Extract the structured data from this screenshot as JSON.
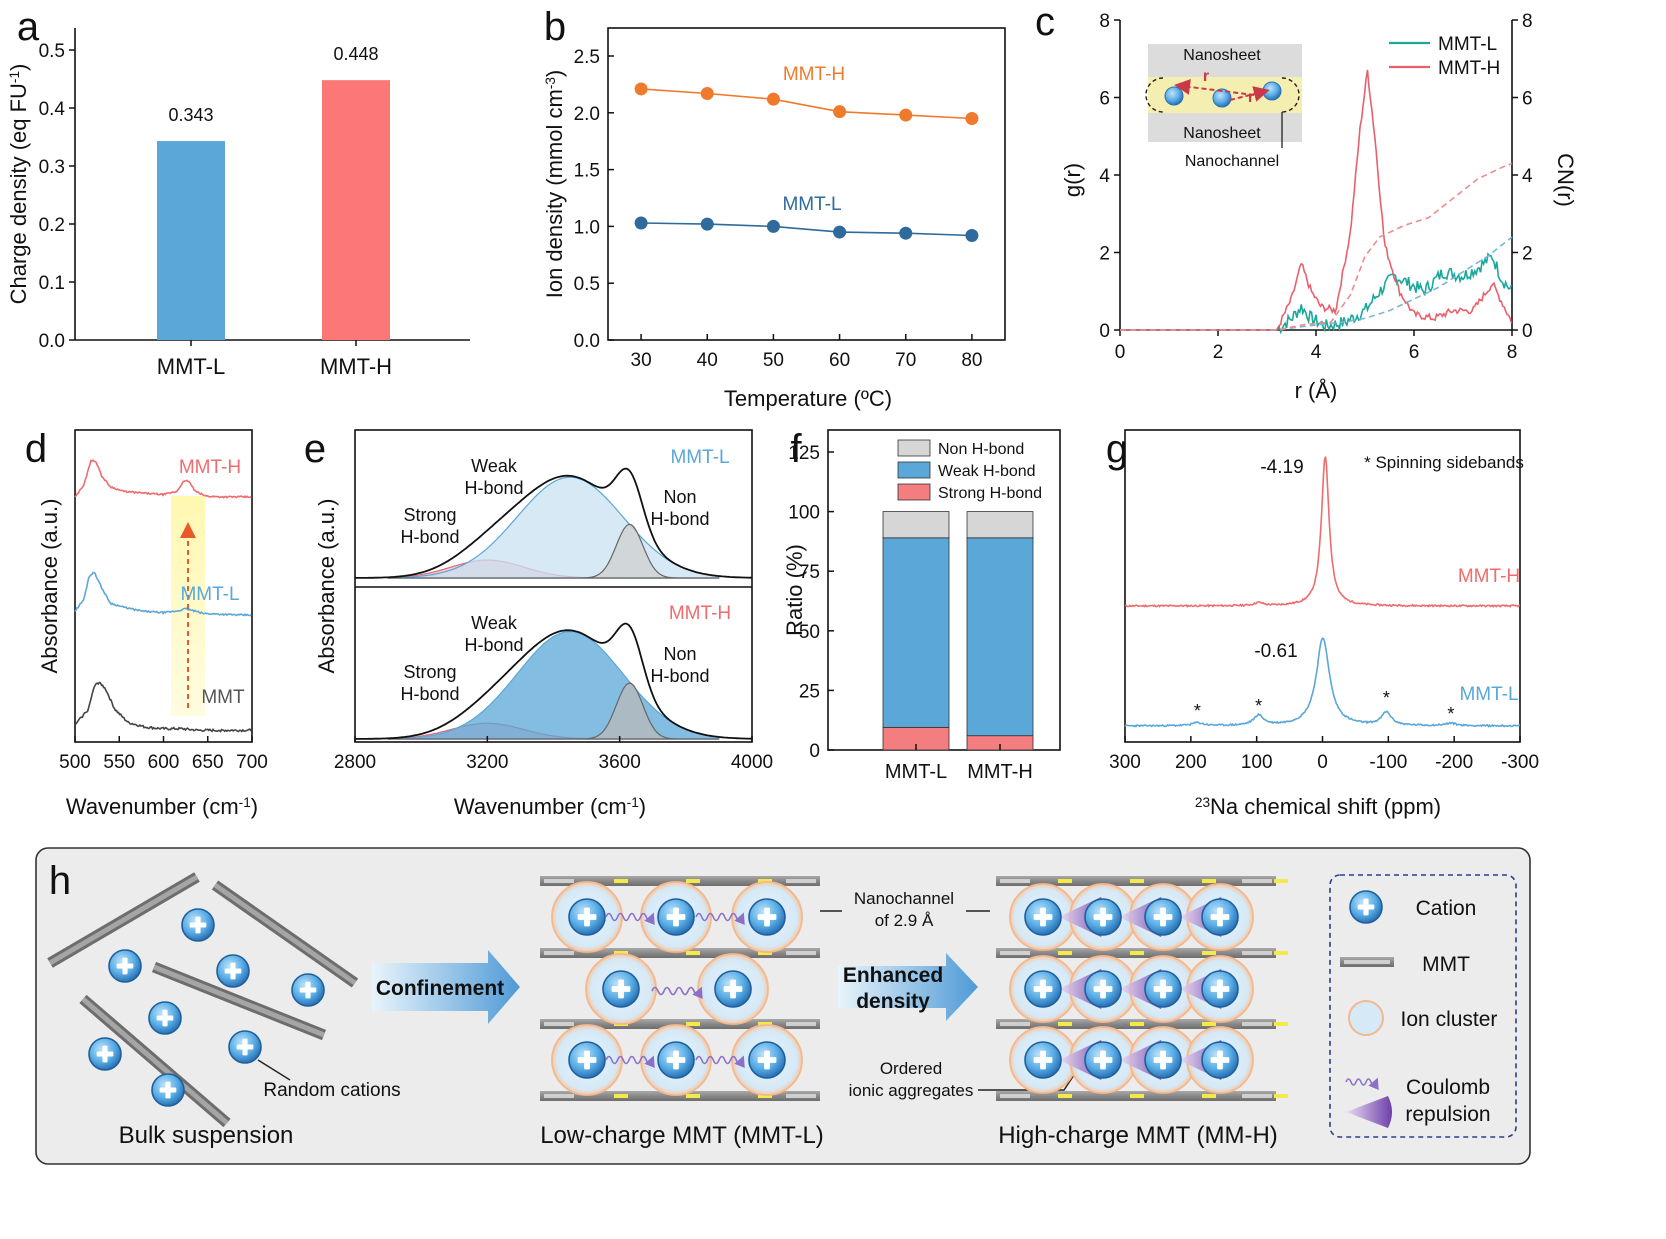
{
  "panel_labels": [
    "a",
    "b",
    "c",
    "d",
    "e",
    "f",
    "g",
    "h"
  ],
  "colors": {
    "blue": "#5aa7d8",
    "red": "#f06b6d",
    "orange": "#ef7a2b",
    "navy": "#2e6a9c",
    "teal": "#1aa89a",
    "gray": "#444444"
  },
  "chart_data": [
    {
      "id": "a",
      "type": "bar",
      "categories": [
        "MMT-L",
        "MMT-H"
      ],
      "values": [
        0.343,
        0.448
      ],
      "value_labels": [
        "0.343",
        "0.448"
      ],
      "ylabel": "Charge density (eq FU",
      "ylabel_sup": "-1",
      "ylabel_end": ")",
      "ylim": [
        0,
        0.5
      ],
      "yticks": [
        "0.0",
        "0.1",
        "0.2",
        "0.3",
        "0.4",
        "0.5"
      ],
      "colors": [
        "#5aa7d8",
        "#fb7877"
      ]
    },
    {
      "id": "b",
      "type": "line",
      "x": [
        30,
        40,
        50,
        60,
        70,
        80
      ],
      "xticks": [
        "30",
        "40",
        "50",
        "60",
        "70",
        "80"
      ],
      "series": [
        {
          "name": "MMT-H",
          "values": [
            2.21,
            2.17,
            2.12,
            2.01,
            1.98,
            1.95
          ],
          "color": "#ef7a2b"
        },
        {
          "name": "MMT-L",
          "values": [
            1.03,
            1.02,
            1.0,
            0.95,
            0.94,
            0.92
          ],
          "color": "#2e6a9c"
        }
      ],
      "xlabel": "Temperature (ºC)",
      "ylabel": "Ion density (mmol cm",
      "ylabel_sup": "-3",
      "ylabel_end": ")",
      "xlim": [
        25,
        85
      ],
      "ylim": [
        0,
        2.6
      ],
      "yticks": [
        "0.0",
        "0.5",
        "1.0",
        "1.5",
        "2.0",
        "2.5"
      ]
    },
    {
      "id": "c",
      "type": "line",
      "xlabel": "r (Å)",
      "ylabel_left": "g(r)",
      "ylabel_right": "CN(r)",
      "xlim": [
        0,
        8
      ],
      "ylim": [
        0,
        8
      ],
      "xticks": [
        "0",
        "2",
        "4",
        "6",
        "8"
      ],
      "yticks": [
        "0",
        "2",
        "4",
        "6",
        "8"
      ],
      "series": [
        {
          "name": "MMT-L",
          "kind": "g(r)",
          "color": "#1aa89a",
          "x": [
            0,
            3.2,
            3.5,
            3.7,
            3.9,
            4.2,
            4.6,
            5.0,
            5.3,
            5.6,
            5.9,
            6.2,
            6.6,
            7.0,
            7.3,
            7.6,
            7.8,
            8.0
          ],
          "y": [
            0,
            0,
            0.3,
            0.6,
            0.3,
            0.1,
            0.2,
            0.5,
            1.0,
            1.4,
            1.2,
            1.0,
            1.5,
            1.4,
            1.6,
            1.9,
            1.3,
            1.0
          ]
        },
        {
          "name": "MMT-H",
          "kind": "g(r)",
          "color": "#e9606b",
          "x": [
            0,
            3.2,
            3.5,
            3.7,
            3.9,
            4.1,
            4.4,
            4.7,
            4.9,
            5.05,
            5.2,
            5.4,
            5.7,
            6.0,
            6.4,
            6.8,
            7.2,
            7.6,
            7.8,
            8.0
          ],
          "y": [
            0,
            0,
            0.8,
            1.7,
            1.0,
            0.6,
            0.5,
            2.5,
            5.2,
            6.7,
            5.0,
            2.2,
            1.0,
            0.4,
            0.3,
            0.5,
            0.5,
            1.2,
            0.7,
            0.2
          ]
        },
        {
          "name": "MMT-L CN",
          "kind": "CN(r)",
          "color": "#7ab6d8",
          "dashed": true,
          "x": [
            0,
            3.2,
            3.8,
            4.5,
            5.0,
            5.5,
            6.0,
            6.5,
            7.0,
            7.5,
            8.0
          ],
          "y": [
            0,
            0,
            0.1,
            0.2,
            0.3,
            0.5,
            0.8,
            1.1,
            1.5,
            1.9,
            2.4
          ]
        },
        {
          "name": "MMT-H CN",
          "kind": "CN(r)",
          "color": "#f08a8c",
          "dashed": true,
          "x": [
            0,
            3.2,
            3.8,
            4.3,
            4.7,
            5.0,
            5.3,
            5.8,
            6.3,
            6.8,
            7.3,
            7.8,
            8.0
          ],
          "y": [
            0,
            0,
            0.15,
            0.2,
            0.9,
            1.9,
            2.4,
            2.7,
            2.9,
            3.4,
            3.9,
            4.2,
            4.3
          ]
        }
      ],
      "legend": [
        "MMT-L",
        "MMT-H"
      ],
      "inset_labels": {
        "top": "Nanosheet",
        "bottom": "Nanosheet",
        "channel": "Nanochannel",
        "r": "r"
      }
    },
    {
      "id": "d",
      "type": "line",
      "xlabel": "Wavenumber (cm",
      "xlabel_sup": "-1",
      "xlabel_end": ")",
      "ylabel": "Absorbance (a.u.)",
      "xlim": [
        500,
        700
      ],
      "xticks": [
        "500",
        "550",
        "600",
        "650",
        "700"
      ],
      "series": [
        {
          "name": "MMT-H",
          "color": "#f06b6d",
          "x": [
            500,
            510,
            518,
            524,
            530,
            540,
            555,
            575,
            600,
            615,
            622,
            628,
            636,
            648,
            665,
            685,
            700
          ],
          "y": [
            0.45,
            0.6,
            0.92,
            0.9,
            0.72,
            0.58,
            0.52,
            0.5,
            0.48,
            0.52,
            0.64,
            0.66,
            0.52,
            0.46,
            0.45,
            0.45,
            0.45
          ]
        },
        {
          "name": "MMT-L",
          "color": "#5aa7d8",
          "x": [
            500,
            510,
            516,
            522,
            530,
            540,
            555,
            575,
            600,
            615,
            625,
            632,
            645,
            665,
            685,
            700
          ],
          "y": [
            0.05,
            0.2,
            0.5,
            0.55,
            0.35,
            0.15,
            0.1,
            0.05,
            0.03,
            0.05,
            0.08,
            0.06,
            0.02,
            0.01,
            0.0,
            0.0
          ]
        },
        {
          "name": "MMT",
          "color": "#444444",
          "x": [
            500,
            515,
            522,
            528,
            535,
            545,
            560,
            580,
            600,
            620,
            640,
            660,
            680,
            700
          ],
          "y": [
            -0.55,
            -0.35,
            -0.05,
            0.0,
            -0.1,
            -0.35,
            -0.52,
            -0.58,
            -0.6,
            -0.6,
            -0.62,
            -0.62,
            -0.62,
            -0.62
          ]
        }
      ]
    },
    {
      "id": "e",
      "type": "area",
      "xlabel": "Wavenumber (cm",
      "xlabel_sup": "-1",
      "xlabel_end": ")",
      "ylabel": "Absorbance (a.u.)",
      "xlim": [
        2800,
        4000
      ],
      "xticks": [
        "2800",
        "3200",
        "3600",
        "4000"
      ],
      "subplots": [
        {
          "sample": "MMT-L",
          "label_color": "#5aa7d8",
          "labels": [
            "Weak",
            "H-bond",
            "Strong",
            "H-bond",
            "Non",
            "H-bond"
          ]
        },
        {
          "sample": "MMT-H",
          "label_color": "#f06b6d",
          "labels": [
            "Weak",
            "H-bond",
            "Strong",
            "H-bond",
            "Non",
            "H-bond"
          ]
        }
      ],
      "components": [
        {
          "name": "Strong H-bond",
          "center": 3200,
          "width": 110,
          "height_L": 0.16,
          "height_H": 0.14,
          "color": "#f0a0a8"
        },
        {
          "name": "Weak H-bond",
          "center": 3450,
          "width": 160,
          "height_L": 0.9,
          "height_H": 0.96,
          "color": "#5aa7d8"
        },
        {
          "name": "Non H-bond",
          "center": 3630,
          "width": 40,
          "height_L": 0.48,
          "height_H": 0.5,
          "color": "#b0b0b0"
        }
      ]
    },
    {
      "id": "f",
      "type": "bar",
      "categories": [
        "MMT-L",
        "MMT-H"
      ],
      "series": [
        {
          "name": "Strong H-bond",
          "values": [
            9.5,
            6
          ],
          "color": "#f47d7f"
        },
        {
          "name": "Weak H-bond",
          "values": [
            79.5,
            83
          ],
          "color": "#5aa7d8"
        },
        {
          "name": "Non H-bond",
          "values": [
            11,
            11
          ],
          "color": "#d6d6d6"
        }
      ],
      "legend": [
        "Non H-bond",
        "Weak H-bond",
        "Strong H-bond"
      ],
      "ylabel": "Ratio (%)",
      "ylim": [
        0,
        130
      ],
      "yticks": [
        "0",
        "25",
        "50",
        "75",
        "100",
        "125"
      ]
    },
    {
      "id": "g",
      "type": "line",
      "xlabel_sup": "23",
      "xlabel": "Na chemical shift (ppm)",
      "xlim": [
        300,
        -300
      ],
      "xticks": [
        "300",
        "200",
        "100",
        "0",
        "-100",
        "-200",
        "-300"
      ],
      "annotation": "* Spinning sidebands",
      "series": [
        {
          "name": "MMT-H",
          "color": "#f06b6d",
          "peak_label": "-4.19",
          "peak": -4.19
        },
        {
          "name": "MMT-L",
          "color": "#5aa7d8",
          "peak_label": "-0.61",
          "peak": -0.61
        }
      ],
      "sideband_positions": [
        190,
        97,
        -97,
        -195
      ]
    }
  ],
  "panel_h": {
    "bulk": "Bulk suspension",
    "random": "Random cations",
    "confinement": "Confinement",
    "enhanced1": "Enhanced",
    "enhanced2": "density",
    "nanochannel1": "Nanochannel",
    "nanochannel2": "of 2.9 Å",
    "ordered1": "Ordered",
    "ordered2": "ionic aggregates",
    "low": "Low-charge MMT (MMT-L)",
    "high": "High-charge MMT (MM-H)",
    "legend": {
      "cation": "Cation",
      "mmt": "MMT",
      "cluster": "Ion cluster",
      "coulomb1": "Coulomb",
      "coulomb2": "repulsion"
    }
  }
}
